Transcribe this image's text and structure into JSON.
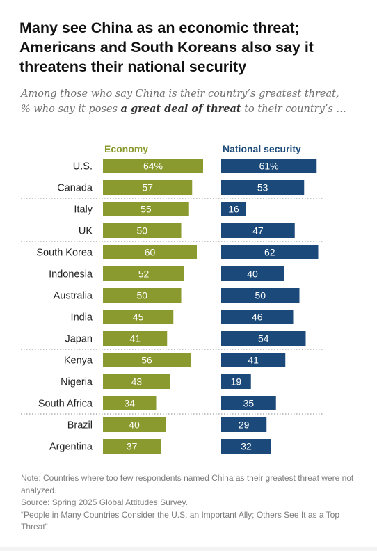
{
  "header": {
    "title": "Many see China as an economic threat; Americans and South Koreans also say it threatens their national security",
    "subtitle_pre": "Among those who say China is their country’s greatest threat, % who say it poses ",
    "subtitle_em": "a great deal of threat",
    "subtitle_post": " to their country’s …"
  },
  "chart_data": {
    "type": "bar",
    "categories": [
      "U.S.",
      "Canada",
      "Italy",
      "UK",
      "South Korea",
      "Indonesia",
      "Australia",
      "India",
      "Japan",
      "Kenya",
      "Nigeria",
      "South Africa",
      "Brazil",
      "Argentina"
    ],
    "series": [
      {
        "name": "Economy",
        "color": "#8a9a2e",
        "values": [
          64,
          57,
          55,
          50,
          60,
          52,
          50,
          45,
          41,
          56,
          43,
          34,
          40,
          37
        ],
        "first_label_suffix": "%"
      },
      {
        "name": "National security",
        "color": "#1b4a7a",
        "values": [
          61,
          53,
          16,
          47,
          62,
          40,
          50,
          46,
          54,
          41,
          19,
          35,
          29,
          32
        ],
        "first_label_suffix": "%"
      }
    ],
    "group_dividers_after": [
      "Canada",
      "UK",
      "Japan",
      "South Africa"
    ],
    "xlim": [
      0,
      100
    ],
    "label_color": "#ffffff"
  },
  "footer": {
    "note": "Note: Countries where too few respondents named China as their greatest threat were not analyzed.",
    "source": "Source: Spring 2025 Global Attitudes Survey.",
    "report": "“People in Many Countries Consider the U.S. an Important Ally; Others See It as a Top Threat”"
  }
}
